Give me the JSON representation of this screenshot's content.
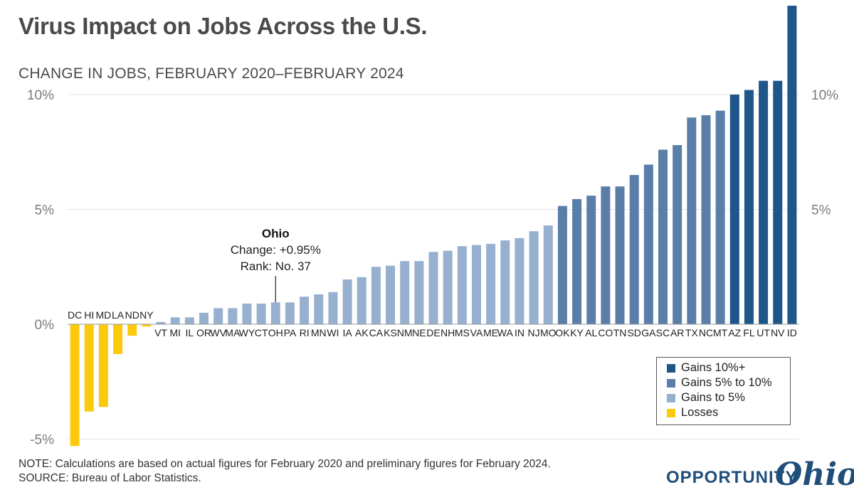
{
  "header": {
    "title": "Virus Impact on Jobs Across the U.S.",
    "subtitle": "CHANGE IN JOBS, FEBRUARY 2020–FEBRUARY 2024"
  },
  "footer": {
    "note": "NOTE: Calculations are based on actual figures for February 2020 and preliminary figures for February 2024.",
    "source": "SOURCE: Bureau of Labor Statistics."
  },
  "logo": {
    "word": "OPPORTUNITY",
    "script": "Ohio"
  },
  "colors": {
    "gains_10_plus": "#1e5689",
    "gains_5_to_10": "#5b7ea9",
    "gains_to_5": "#97b0cf",
    "losses": "#fdc90d",
    "grid": "#e3e3e3",
    "tick_text": "#7a7a7a"
  },
  "legend": [
    {
      "label": "Gains 10%+",
      "color_key": "gains_10_plus"
    },
    {
      "label": "Gains 5% to 10%",
      "color_key": "gains_5_to_10"
    },
    {
      "label": "Gains to 5%",
      "color_key": "gains_to_5"
    },
    {
      "label": "Losses",
      "color_key": "losses"
    }
  ],
  "annotation": {
    "state": "OH",
    "name": "Ohio",
    "change": "Change: +0.95%",
    "rank": "Rank: No. 37"
  },
  "chart_data": {
    "type": "bar",
    "title": "Virus Impact on Jobs Across the U.S.",
    "subtitle": "CHANGE IN JOBS, FEBRUARY 2020–FEBRUARY 2024",
    "categories": [
      "DC",
      "HI",
      "MD",
      "LA",
      "ND",
      "NY",
      "VT",
      "MI",
      "IL",
      "OR",
      "WV",
      "MA",
      "WY",
      "CT",
      "OH",
      "PA",
      "RI",
      "MN",
      "WI",
      "IA",
      "AK",
      "CA",
      "KS",
      "NM",
      "NE",
      "DE",
      "NH",
      "MS",
      "VA",
      "ME",
      "WA",
      "IN",
      "NJ",
      "MO",
      "OK",
      "KY",
      "AL",
      "CO",
      "TN",
      "SD",
      "GA",
      "SC",
      "AR",
      "TX",
      "NC",
      "MT",
      "AZ",
      "FL",
      "UT",
      "NV",
      "ID"
    ],
    "values": [
      -5.3,
      -3.8,
      -3.6,
      -1.3,
      -0.5,
      -0.1,
      0.1,
      0.3,
      0.3,
      0.5,
      0.7,
      0.7,
      0.9,
      0.9,
      0.95,
      0.95,
      1.2,
      1.3,
      1.4,
      1.95,
      2.05,
      2.5,
      2.55,
      2.75,
      2.75,
      3.15,
      3.2,
      3.4,
      3.45,
      3.5,
      3.65,
      3.75,
      4.05,
      4.3,
      5.15,
      5.45,
      5.6,
      6.0,
      6.0,
      6.5,
      6.95,
      7.6,
      7.8,
      9.0,
      9.1,
      9.3,
      10.0,
      10.2,
      10.6,
      10.6,
      13.9
    ],
    "ylim": [
      -5,
      10
    ],
    "yticks": [
      {
        "value": 10,
        "label": "10%"
      },
      {
        "value": 5,
        "label": "5%"
      },
      {
        "value": 0,
        "label": "0%"
      },
      {
        "value": -5,
        "label": "-5%"
      }
    ],
    "yticks_right": [
      {
        "value": 10,
        "label": "10%"
      },
      {
        "value": 5,
        "label": "5%"
      }
    ],
    "grid": true,
    "legend_position": "bottom-right",
    "xlabel": "",
    "ylabel": ""
  }
}
